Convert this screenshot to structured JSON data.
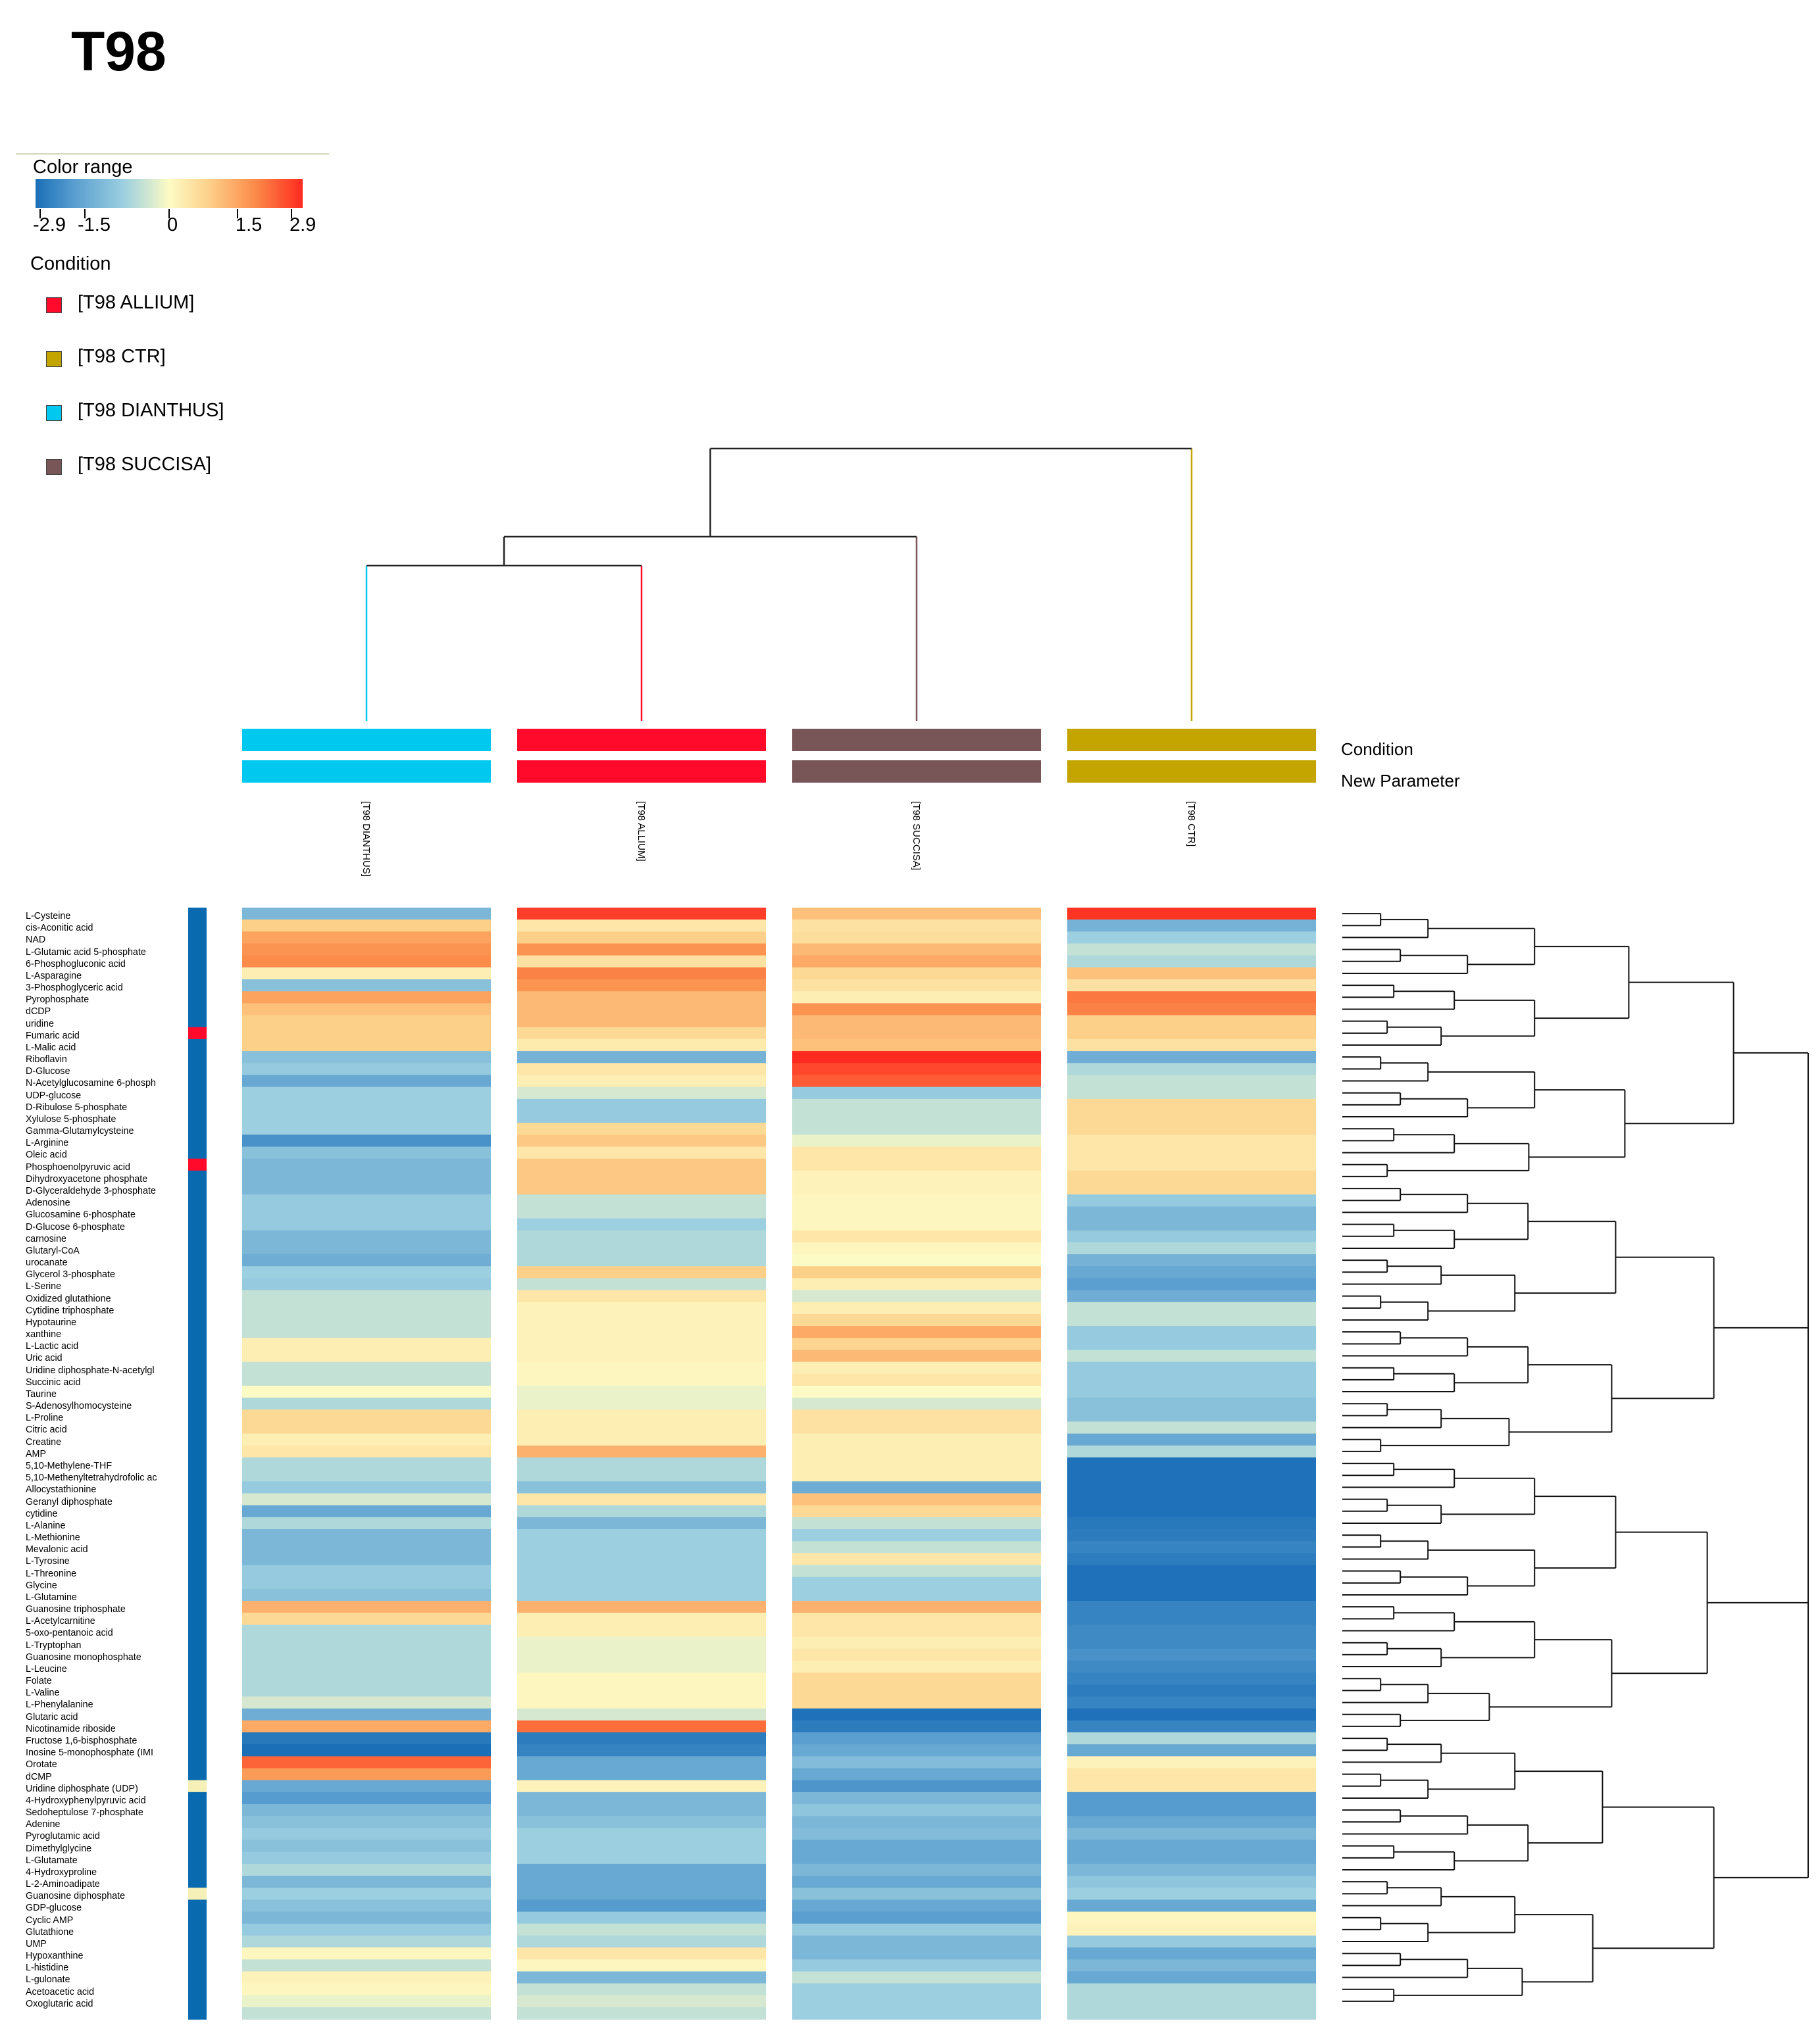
{
  "title": "T98",
  "legend": {
    "color_range_title": "Color range",
    "ticks": [
      "-2.9",
      "-1.5",
      "0",
      "1.5",
      "2.9"
    ],
    "condition_title": "Condition",
    "conditions": [
      {
        "label": "[T98 ALLIUM]",
        "color": "#ff0a2a"
      },
      {
        "label": "[T98 CTR]",
        "color": "#c4a500"
      },
      {
        "label": "[T98 DIANTHUS]",
        "color": "#00c8ef"
      },
      {
        "label": "[T98 SUCCISA]",
        "color": "#785556"
      }
    ]
  },
  "annotation_rows": [
    "Condition",
    "New Parameter"
  ],
  "chart_data": {
    "type": "heatmap",
    "title": "T98",
    "value_range": [
      -2.9,
      2.9
    ],
    "columns": [
      "[T98 DIANTHUS]",
      "[T98 ALLIUM]",
      "[T98 SUCCISA]",
      "[T98 CTR]"
    ],
    "column_colors": [
      "#00c8ef",
      "#ff0a2a",
      "#785556",
      "#c4a500"
    ],
    "rows": [
      "L-Cysteine",
      "cis-Aconitic acid",
      "NAD",
      "L-Glutamic acid 5-phosphate",
      "6-Phosphogluconic acid",
      "L-Asparagine",
      "3-Phosphoglyceric acid",
      "Pyrophosphate",
      "dCDP",
      "uridine",
      "Fumaric acid",
      "L-Malic acid",
      "Riboflavin",
      "D-Glucose",
      "N-Acetylglucosamine 6-phosph",
      "UDP-glucose",
      "D-Ribulose 5-phosphate",
      "Xylulose 5-phosphate",
      "Gamma-Glutamylcysteine",
      "L-Arginine",
      "Oleic acid",
      "Phosphoenolpyruvic acid",
      "Dihydroxyacetone phosphate",
      "D-Glyceraldehyde 3-phosphate",
      "Adenosine",
      "Glucosamine 6-phosphate",
      "D-Glucose 6-phosphate",
      "carnosine",
      "Glutaryl-CoA",
      "urocanate",
      "Glycerol 3-phosphate",
      "L-Serine",
      "Oxidized glutathione",
      "Cytidine triphosphate",
      "Hypotaurine",
      "xanthine",
      "L-Lactic acid",
      "Uric acid",
      "Uridine diphosphate-N-acetylgl",
      "Succinic acid",
      "Taurine",
      "S-Adenosylhomocysteine",
      "L-Proline",
      "Citric acid",
      "Creatine",
      "AMP",
      "5,10-Methylene-THF",
      "5,10-Methenyltetrahydrofolic ac",
      "Allocystathionine",
      "Geranyl diphosphate",
      "cytidine",
      "L-Alanine",
      "L-Methionine",
      "Mevalonic acid",
      "L-Tyrosine",
      "L-Threonine",
      "Glycine",
      "L-Glutamine",
      "Guanosine triphosphate",
      "L-Acetylcarnitine",
      "5-oxo-pentanoic acid",
      "L-Tryptophan",
      "Guanosine monophosphate",
      "L-Leucine",
      "Folate",
      "L-Valine",
      "L-Phenylalanine",
      "Glutaric acid",
      "Nicotinamide riboside",
      "Fructose 1,6-bisphosphate",
      "Inosine 5-monophosphate (IMI",
      "Orotate",
      "dCMP",
      "Uridine diphosphate (UDP)",
      "4-Hydroxyphenylpyruvic acid",
      "Sedoheptulose 7-phosphate",
      "Adenine",
      "Pyroglutamic acid",
      "Dimethylglycine",
      "L-Glutamate",
      "4-Hydroxyproline",
      "L-2-Aminoadipate",
      "Guanosine diphosphate",
      "GDP-glucose",
      "Cyclic AMP",
      "Glutathione",
      "UMP",
      "Hypoxanthine",
      "L-histidine",
      "L-gulonate",
      "Acetoacetic acid",
      "Oxoglutaric acid"
    ],
    "row_condition": [
      "DIANTHUS",
      "DIANTHUS",
      "DIANTHUS",
      "DIANTHUS",
      "DIANTHUS",
      "DIANTHUS",
      "DIANTHUS",
      "DIANTHUS",
      "DIANTHUS",
      "DIANTHUS",
      "ALLIUM",
      "DIANTHUS",
      "DIANTHUS",
      "DIANTHUS",
      "DIANTHUS",
      "DIANTHUS",
      "DIANTHUS",
      "DIANTHUS",
      "DIANTHUS",
      "DIANTHUS",
      "DIANTHUS",
      "ALLIUM",
      "DIANTHUS",
      "DIANTHUS",
      "DIANTHUS",
      "DIANTHUS",
      "DIANTHUS",
      "DIANTHUS",
      "DIANTHUS",
      "DIANTHUS",
      "DIANTHUS",
      "DIANTHUS",
      "DIANTHUS",
      "DIANTHUS",
      "DIANTHUS",
      "DIANTHUS",
      "DIANTHUS",
      "DIANTHUS",
      "DIANTHUS",
      "DIANTHUS",
      "DIANTHUS",
      "DIANTHUS",
      "DIANTHUS",
      "DIANTHUS",
      "DIANTHUS",
      "DIANTHUS",
      "DIANTHUS",
      "DIANTHUS",
      "DIANTHUS",
      "DIANTHUS",
      "DIANTHUS",
      "DIANTHUS",
      "DIANTHUS",
      "DIANTHUS",
      "DIANTHUS",
      "DIANTHUS",
      "DIANTHUS",
      "DIANTHUS",
      "DIANTHUS",
      "DIANTHUS",
      "DIANTHUS",
      "DIANTHUS",
      "DIANTHUS",
      "DIANTHUS",
      "DIANTHUS",
      "DIANTHUS",
      "DIANTHUS",
      "DIANTHUS",
      "DIANTHUS",
      "DIANTHUS",
      "DIANTHUS",
      "DIANTHUS",
      "DIANTHUS",
      "CTR",
      "DIANTHUS",
      "DIANTHUS",
      "DIANTHUS",
      "DIANTHUS",
      "DIANTHUS",
      "DIANTHUS",
      "DIANTHUS",
      "DIANTHUS",
      "CTR",
      "DIANTHUS",
      "DIANTHUS",
      "DIANTHUS",
      "DIANTHUS",
      "DIANTHUS",
      "DIANTHUS",
      "DIANTHUS",
      "DIANTHUS",
      "DIANTHUS",
      "DIANTHUS"
    ],
    "values": [
      [
        -1.0,
        2.7,
        1.2,
        2.8
      ],
      [
        1.0,
        0.5,
        0.6,
        -1.1
      ],
      [
        1.6,
        1.0,
        0.7,
        -0.5
      ],
      [
        1.8,
        1.8,
        1.3,
        -0.3
      ],
      [
        1.9,
        0.6,
        1.5,
        -0.4
      ],
      [
        0.3,
        2.0,
        0.8,
        1.2
      ],
      [
        -0.8,
        1.8,
        0.6,
        0.6
      ],
      [
        1.6,
        1.3,
        0.3,
        2.1
      ],
      [
        1.2,
        1.3,
        1.8,
        2.0
      ],
      [
        1.0,
        1.3,
        1.3,
        1.0
      ],
      [
        1.0,
        0.8,
        1.3,
        1.0
      ],
      [
        1.0,
        0.4,
        1.2,
        0.6
      ],
      [
        -0.8,
        -1.1,
        2.9,
        -1.2
      ],
      [
        -0.6,
        0.5,
        2.6,
        -0.4
      ],
      [
        -1.3,
        0.3,
        2.4,
        -0.3
      ],
      [
        -0.5,
        -0.2,
        -0.6,
        -0.3
      ],
      [
        -0.5,
        -0.6,
        -0.3,
        0.8
      ],
      [
        -0.5,
        -0.6,
        -0.3,
        0.8
      ],
      [
        -0.5,
        0.8,
        -0.3,
        0.8
      ],
      [
        -1.9,
        1.1,
        -0.1,
        0.5
      ],
      [
        -0.8,
        0.5,
        0.5,
        0.5
      ],
      [
        -1.0,
        1.1,
        0.5,
        0.5
      ],
      [
        -1.0,
        1.1,
        0.2,
        0.8
      ],
      [
        -1.0,
        1.1,
        0.2,
        0.8
      ],
      [
        -0.6,
        -0.3,
        0.1,
        -0.6
      ],
      [
        -0.6,
        -0.3,
        0.1,
        -1.0
      ],
      [
        -0.6,
        -0.5,
        0.1,
        -1.0
      ],
      [
        -1.0,
        -0.4,
        0.5,
        -0.6
      ],
      [
        -1.0,
        -0.4,
        0.1,
        -0.4
      ],
      [
        -1.2,
        -0.4,
        0.0,
        -1.1
      ],
      [
        -0.5,
        1.0,
        1.0,
        -1.3
      ],
      [
        -0.6,
        -0.3,
        0.3,
        -1.5
      ],
      [
        -0.3,
        0.5,
        -0.2,
        -1.2
      ],
      [
        -0.3,
        0.2,
        0.3,
        -0.3
      ],
      [
        -0.3,
        0.2,
        0.8,
        -0.3
      ],
      [
        -0.3,
        0.2,
        1.5,
        -0.6
      ],
      [
        0.3,
        0.2,
        0.9,
        -0.6
      ],
      [
        0.3,
        0.2,
        1.3,
        -0.3
      ],
      [
        -0.3,
        0.1,
        0.3,
        -0.6
      ],
      [
        -0.3,
        0.1,
        0.5,
        -0.6
      ],
      [
        0.0,
        -0.1,
        0.0,
        -0.6
      ],
      [
        -0.4,
        -0.1,
        -0.2,
        -0.8
      ],
      [
        0.8,
        0.3,
        0.6,
        -0.8
      ],
      [
        0.8,
        0.3,
        0.6,
        -0.3
      ],
      [
        0.3,
        0.3,
        0.3,
        -1.3
      ],
      [
        0.5,
        1.4,
        0.3,
        -0.4
      ],
      [
        -0.4,
        -0.4,
        0.3,
        -2.8
      ],
      [
        -0.4,
        -0.4,
        0.3,
        -2.8
      ],
      [
        -0.6,
        -0.8,
        -1.2,
        -2.8
      ],
      [
        -0.2,
        0.5,
        1.2,
        -2.8
      ],
      [
        -1.3,
        -0.4,
        0.8,
        -2.8
      ],
      [
        -0.4,
        -1.0,
        -0.3,
        -2.6
      ],
      [
        -1.0,
        -0.5,
        -0.5,
        -2.5
      ],
      [
        -1.0,
        -0.5,
        -0.3,
        -2.3
      ],
      [
        -1.0,
        -0.5,
        0.5,
        -2.5
      ],
      [
        -0.6,
        -0.5,
        -0.3,
        -2.8
      ],
      [
        -0.6,
        -0.5,
        -0.5,
        -2.8
      ],
      [
        -0.8,
        -0.5,
        -0.5,
        -2.8
      ],
      [
        1.4,
        1.4,
        1.4,
        -2.3
      ],
      [
        0.8,
        0.3,
        0.5,
        -2.3
      ],
      [
        -0.4,
        0.3,
        0.5,
        -2.1
      ],
      [
        -0.4,
        -0.1,
        0.3,
        -2.1
      ],
      [
        -0.4,
        -0.1,
        0.5,
        -1.9
      ],
      [
        -0.4,
        -0.1,
        0.3,
        -2.1
      ],
      [
        -0.4,
        0.1,
        0.8,
        -2.3
      ],
      [
        -0.4,
        0.1,
        0.8,
        -2.5
      ],
      [
        -0.2,
        0.1,
        0.8,
        -2.3
      ],
      [
        -1.2,
        -0.2,
        -2.8,
        -2.8
      ],
      [
        1.5,
        2.2,
        -2.5,
        -2.3
      ],
      [
        -2.6,
        -2.5,
        -1.5,
        -0.4
      ],
      [
        -2.9,
        -2.3,
        -1.3,
        -1.3
      ],
      [
        2.3,
        -1.3,
        -0.9,
        0.2
      ],
      [
        1.7,
        -1.3,
        -1.3,
        0.5
      ],
      [
        -1.3,
        0.2,
        -1.8,
        0.5
      ],
      [
        -1.6,
        -1.0,
        -1.0,
        -1.6
      ],
      [
        -1.0,
        -1.0,
        -0.7,
        -1.6
      ],
      [
        -0.8,
        -0.8,
        -1.0,
        -1.3
      ],
      [
        -0.6,
        -0.5,
        -0.9,
        -1.0
      ],
      [
        -0.8,
        -0.5,
        -1.3,
        -1.3
      ],
      [
        -0.6,
        -0.5,
        -1.3,
        -1.3
      ],
      [
        -0.4,
        -1.3,
        -1.0,
        -1.0
      ],
      [
        -1.0,
        -1.3,
        -1.3,
        -0.7
      ],
      [
        -0.5,
        -1.3,
        -0.8,
        -0.5
      ],
      [
        -0.8,
        -1.6,
        -1.3,
        -1.3
      ],
      [
        -1.0,
        -0.6,
        -1.5,
        0.1
      ],
      [
        -0.6,
        -0.3,
        -0.6,
        0.2
      ],
      [
        -0.4,
        -0.4,
        -1.0,
        -0.6
      ],
      [
        0.1,
        0.5,
        -1.0,
        -1.3
      ],
      [
        -0.3,
        0.1,
        -0.6,
        -1.0
      ],
      [
        0.2,
        -1.0,
        -0.3,
        -1.3
      ],
      [
        0.1,
        -0.3,
        -0.5,
        -0.4
      ],
      [
        -0.1,
        -0.2,
        -0.5,
        -0.4
      ],
      [
        -0.3,
        -0.3,
        -0.5,
        -0.4
      ]
    ]
  }
}
